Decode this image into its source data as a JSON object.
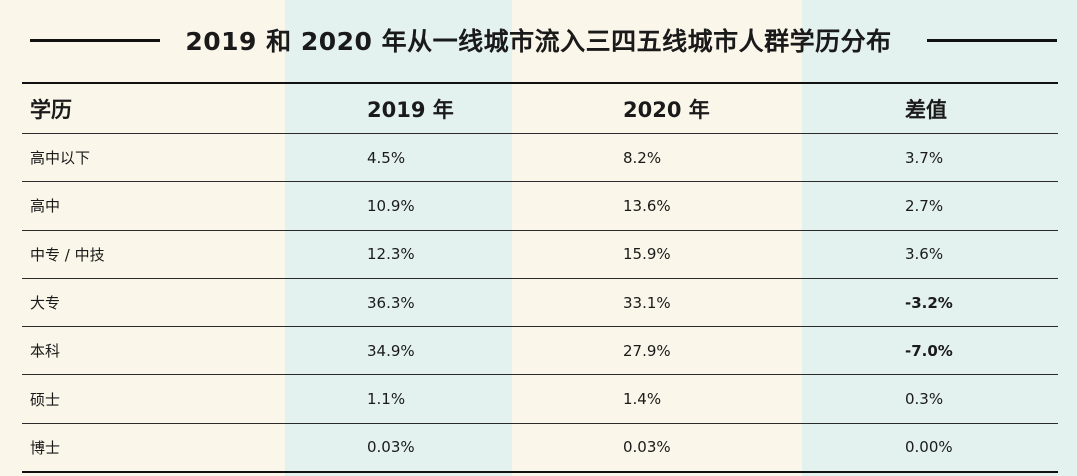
{
  "title": "2019 和 2020 年从一线城市流入三四五线城市人群学历分布",
  "table": {
    "headers": [
      "学历",
      "2019 年",
      "2020 年",
      "差值"
    ],
    "rows": [
      {
        "edu": "高中以下",
        "y2019": "4.5%",
        "y2020": "8.2%",
        "diff": "3.7%"
      },
      {
        "edu": "高中",
        "y2019": "10.9%",
        "y2020": "13.6%",
        "diff": "2.7%"
      },
      {
        "edu": "中专 / 中技",
        "y2019": "12.3%",
        "y2020": "15.9%",
        "diff": "3.6%"
      },
      {
        "edu": "大专",
        "y2019": "36.3%",
        "y2020": "33.1%",
        "diff": "-3.2%"
      },
      {
        "edu": "本科",
        "y2019": "34.9%",
        "y2020": "27.9%",
        "diff": "-7.0%"
      },
      {
        "edu": "硕士",
        "y2019": "1.1%",
        "y2020": "1.4%",
        "diff": "0.3%"
      },
      {
        "edu": "博士",
        "y2019": "0.03%",
        "y2020": "0.03%",
        "diff": "0.00%"
      }
    ]
  },
  "colors": {
    "cream": "#fbf6ea",
    "mint": "#e3f2ef",
    "ink": "#111111"
  }
}
